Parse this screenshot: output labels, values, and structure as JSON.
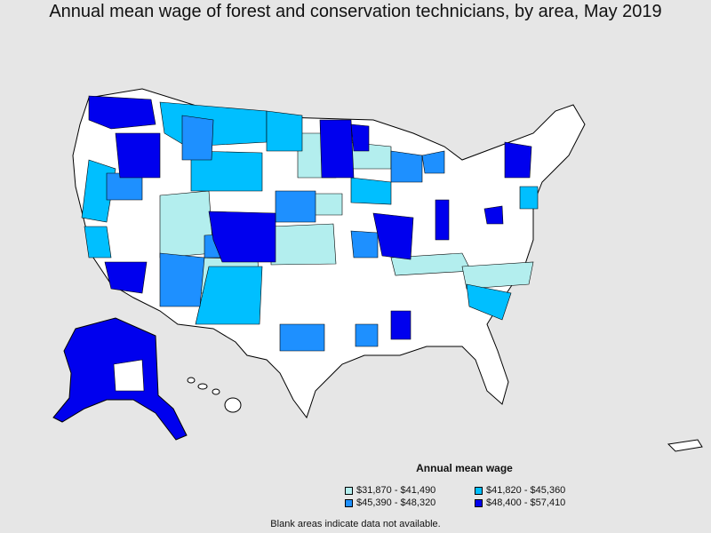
{
  "title": "Annual mean wage of forest and conservation technicians, by area, May 2019",
  "legend": {
    "title": "Annual mean wage",
    "items": [
      {
        "label": "$31,870 - $41,490",
        "color": "#b3eeee"
      },
      {
        "label": "$41,820 - $45,360",
        "color": "#00bfff"
      },
      {
        "label": "$45,390 - $48,320",
        "color": "#1e90ff"
      },
      {
        "label": "$48,400 - $57,410",
        "color": "#0000ee"
      }
    ]
  },
  "no_data_color": "#ffffff",
  "footnote": "Blank areas indicate data not available."
}
